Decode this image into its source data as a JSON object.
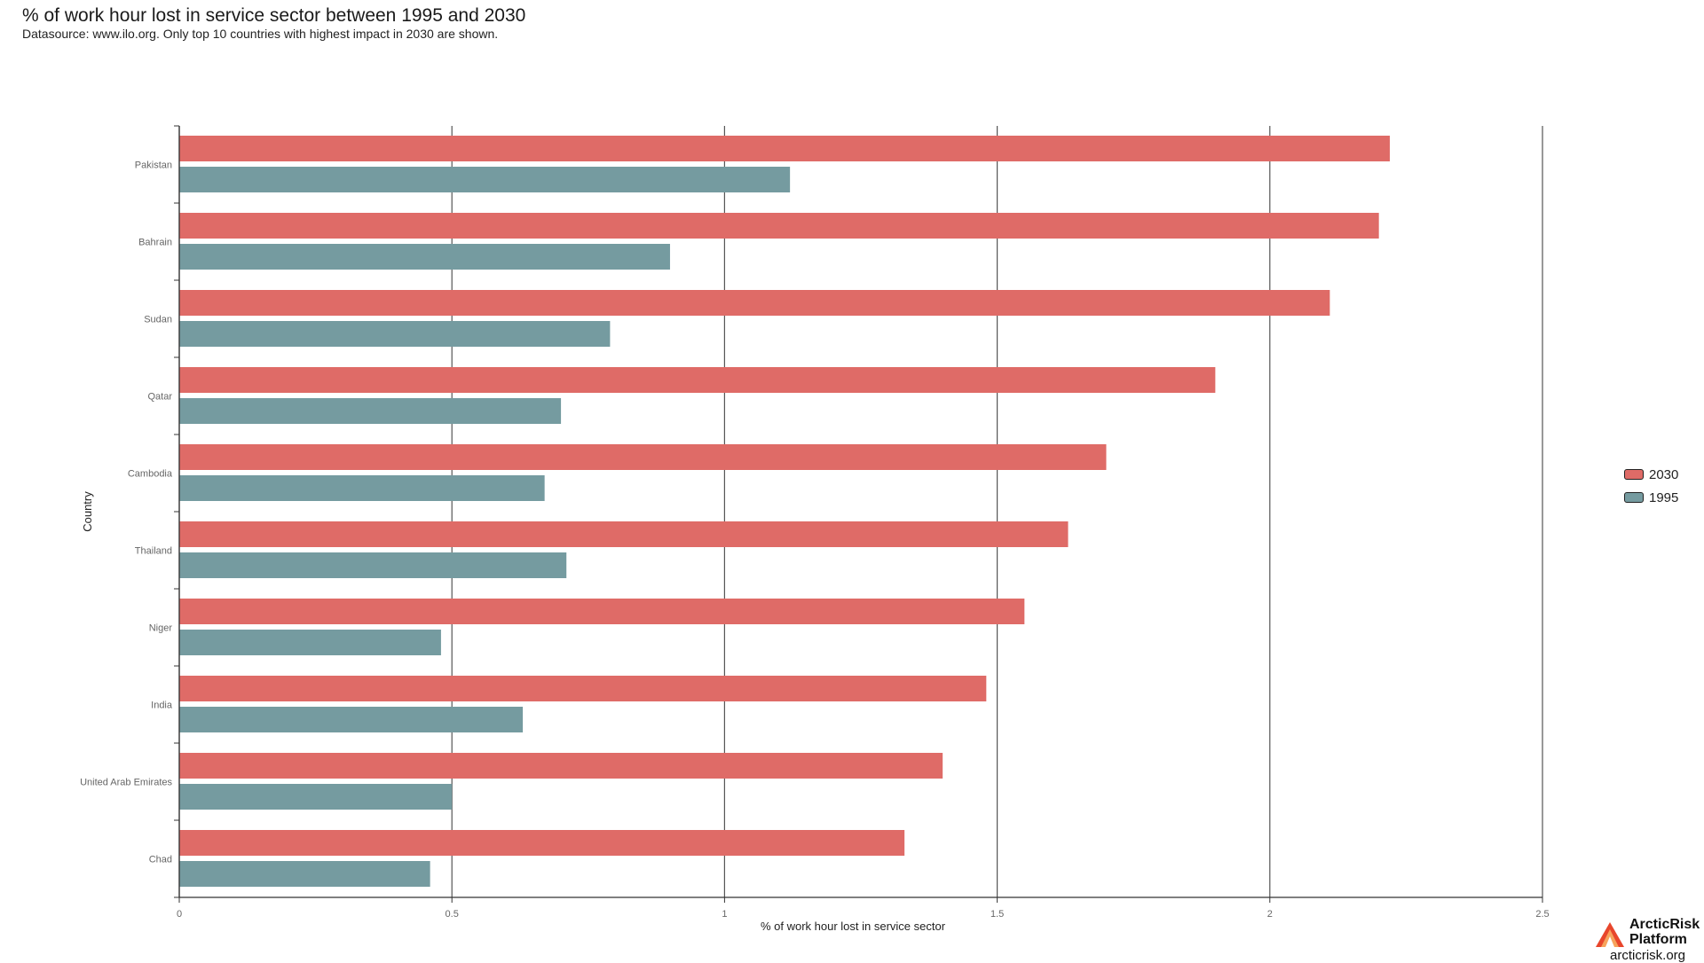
{
  "header": {
    "title": "% of work hour lost in service sector between 1995 and 2030",
    "subtitle": "Datasource: www.ilo.org. Only top 10 countries with highest impact in 2030 are shown."
  },
  "chart_data": {
    "type": "bar",
    "orientation": "horizontal",
    "xlabel": "% of work hour lost in service sector",
    "ylabel": "Country",
    "xlim": [
      0,
      2.5
    ],
    "xticks": [
      0,
      0.5,
      1,
      1.5,
      2,
      2.5
    ],
    "xtick_labels": [
      "0",
      "0.5",
      "1",
      "1.5",
      "2",
      "2.5"
    ],
    "categories": [
      "Pakistan",
      "Bahrain",
      "Sudan",
      "Qatar",
      "Cambodia",
      "Thailand",
      "Niger",
      "India",
      "United Arab Emirates",
      "Chad"
    ],
    "series": [
      {
        "name": "2030",
        "color": "#df6b67",
        "values": [
          2.22,
          2.2,
          2.11,
          1.9,
          1.7,
          1.63,
          1.55,
          1.48,
          1.4,
          1.33
        ]
      },
      {
        "name": "1995",
        "color": "#759ba0",
        "values": [
          1.12,
          0.9,
          0.79,
          0.7,
          0.67,
          0.71,
          0.48,
          0.63,
          0.5,
          0.46
        ]
      }
    ],
    "grid": true,
    "legend": "right"
  },
  "logo": {
    "name": "ArcticRisk Platform",
    "url": "arcticrisk.org"
  }
}
